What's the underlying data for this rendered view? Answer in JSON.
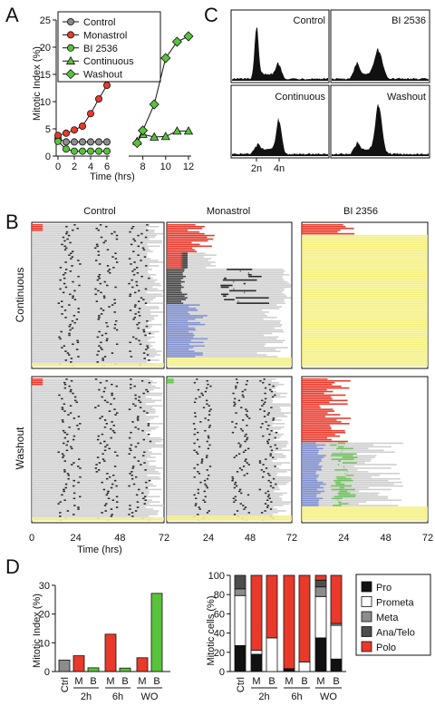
{
  "colors": {
    "control": "#8c8c8c",
    "monastrol": "#e8392b",
    "bi": "#59c23b",
    "pro": "#111111",
    "prometa": "#ffffff",
    "meta": "#8c8c8c",
    "anatelo": "#4d4d4d",
    "polo": "#e8392b",
    "lane_gray": "#cfcfcf",
    "lane_blue": "#7f8fcf",
    "lane_yellow": "#f5f07a",
    "lane_green": "#6dbf5a"
  },
  "panel_labels": {
    "a": "A",
    "b": "B",
    "c": "C",
    "d": "D"
  },
  "panel_b": {
    "col_titles": [
      "Control",
      "Monastrol",
      "BI 2356"
    ],
    "row_labels": [
      "Continuous",
      "Washout"
    ],
    "xticks": [
      "0",
      "24",
      "48",
      "72"
    ],
    "xticks2": [
      "24",
      "48",
      "72"
    ],
    "xticks3": [
      "24",
      "48",
      "72"
    ],
    "xlabel": "Time (hrs)"
  },
  "panel_c": {
    "titles": [
      "Control",
      "BI 2536",
      "Continuous",
      "Washout"
    ],
    "tick_2n": "2n",
    "tick_4n": "4n"
  },
  "chart_data": [
    {
      "id": "A",
      "type": "line",
      "xlabel": "Time (hrs)",
      "ylabel": "Mitotic Index (%)",
      "ylim": [
        0,
        25
      ],
      "yticks": [
        "0",
        "5",
        "10",
        "15",
        "20",
        "25"
      ],
      "xticks": [
        "0",
        "2",
        "4",
        "6",
        "8",
        "10",
        "12"
      ],
      "legend": [
        "Control",
        "Monastrol",
        "BI 2536",
        "Continuous",
        "Washout"
      ],
      "series": [
        {
          "name": "Control",
          "marker": "circle",
          "x": [
            0,
            1,
            2,
            3,
            4,
            5,
            6
          ],
          "y": [
            3.2,
            2.6,
            2.6,
            2.6,
            2.6,
            2.6,
            2.6
          ]
        },
        {
          "name": "Monastrol",
          "marker": "circle",
          "x": [
            0,
            1,
            2,
            3,
            4,
            5,
            6
          ],
          "y": [
            3.8,
            4.2,
            4.8,
            5.5,
            7.8,
            10.5,
            13.0
          ]
        },
        {
          "name": "BI 2536",
          "marker": "circle",
          "x": [
            0,
            1,
            2,
            3,
            4,
            5,
            6
          ],
          "y": [
            2.7,
            1.3,
            0.9,
            0.9,
            0.9,
            0.9,
            0.9
          ]
        },
        {
          "name": "Continuous",
          "marker": "triangle",
          "x": [
            7.5,
            8,
            9,
            10,
            11,
            12
          ],
          "y": [
            2.7,
            4.0,
            3.5,
            3.6,
            4.6,
            4.6
          ]
        },
        {
          "name": "Washout",
          "marker": "diamond",
          "x": [
            7.5,
            8,
            9,
            10,
            11,
            12
          ],
          "y": [
            2.4,
            4.7,
            9.5,
            18.0,
            21.0,
            22.0
          ]
        }
      ]
    },
    {
      "id": "D-left",
      "type": "bar",
      "ylabel": "Mitotic Index (%)",
      "ylim": [
        0,
        30
      ],
      "yticks": [
        "0",
        "10",
        "20",
        "30"
      ],
      "categories": [
        "Ctrl",
        "M",
        "B",
        "M",
        "B",
        "M",
        "B"
      ],
      "groups": [
        "2h",
        "6h",
        "WO"
      ],
      "values": [
        4.0,
        5.5,
        1.3,
        13.0,
        1.2,
        4.8,
        27.2
      ]
    },
    {
      "id": "D-right",
      "type": "bar",
      "stacked": true,
      "ylabel": "Mitotic cells (%)",
      "ylim": [
        0,
        100
      ],
      "yticks": [
        "0",
        "20",
        "40",
        "60",
        "80",
        "100"
      ],
      "categories": [
        "Ctrl",
        "M",
        "B",
        "M",
        "B",
        "M",
        "B"
      ],
      "groups": [
        "2h",
        "6h",
        "WO"
      ],
      "legend": [
        "Pro",
        "Prometa",
        "Meta",
        "Ana/Telo",
        "Polo"
      ],
      "series": [
        {
          "name": "Pro",
          "values": [
            27,
            18,
            0,
            3,
            0,
            35,
            13
          ]
        },
        {
          "name": "Prometa",
          "values": [
            52,
            4,
            35,
            0,
            10,
            43,
            35
          ]
        },
        {
          "name": "Meta",
          "values": [
            7,
            0,
            0,
            0,
            0,
            10,
            2
          ]
        },
        {
          "name": "Ana/Telo",
          "values": [
            14,
            0,
            0,
            0,
            0,
            7,
            0
          ]
        },
        {
          "name": "Polo",
          "values": [
            0,
            78,
            65,
            97,
            90,
            5,
            50
          ]
        }
      ]
    }
  ]
}
